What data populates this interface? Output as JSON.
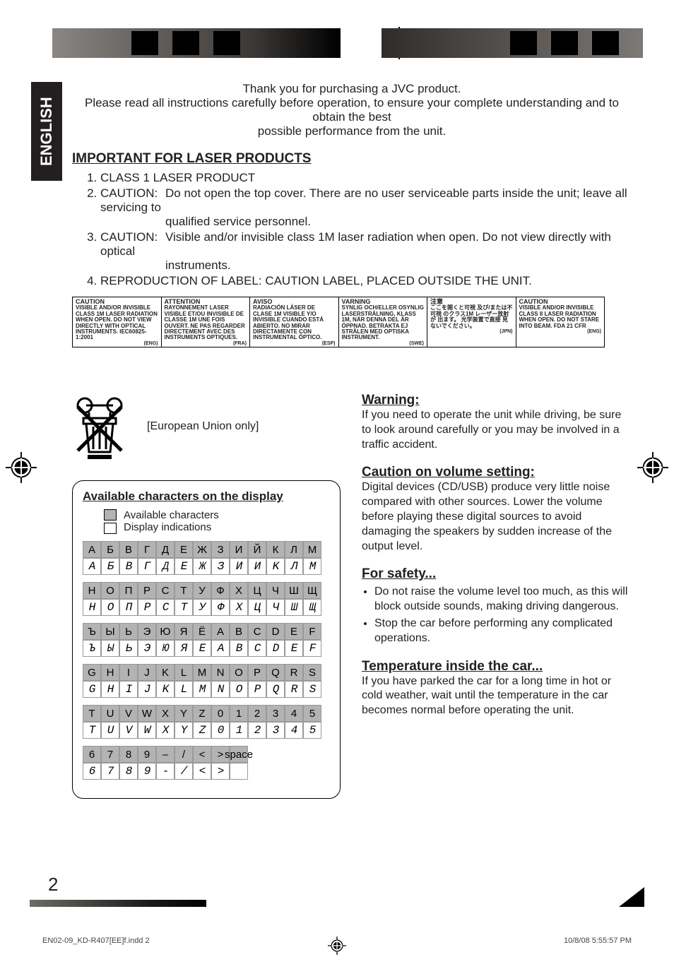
{
  "colors": {
    "text": "#231f20",
    "bg": "#ffffff",
    "tab_bg": "#231f20",
    "tab_fg": "#ffffff",
    "swatch_gray": "#b3b3b3",
    "grid_border": "#999999"
  },
  "lang_tab": "ENGLISH",
  "intro": {
    "l1": "Thank you for purchasing a JVC product.",
    "l2": "Please read all instructions carefully before operation, to ensure your complete understanding and to obtain the best",
    "l3": "possible performance from the unit."
  },
  "laser": {
    "heading": "IMPORTANT FOR LASER PRODUCTS",
    "items": [
      {
        "text": "CLASS 1 LASER PRODUCT"
      },
      {
        "term": "CAUTION:",
        "text": "Do not open the top cover. There are no user serviceable parts inside the unit; leave all servicing to",
        "text2": "qualified service personnel."
      },
      {
        "term": "CAUTION:",
        "text": "Visible and/or invisible class 1M laser radiation when open. Do not view directly with optical",
        "text2": "instruments."
      },
      {
        "text": "REPRODUCTION OF LABEL: CAUTION LABEL, PLACED OUTSIDE THE UNIT."
      }
    ]
  },
  "caution_strip": [
    {
      "hd": "CAUTION",
      "body": "VISIBLE AND/OR INVISIBLE CLASS 1M LASER RADIATION WHEN OPEN. DO NOT VIEW DIRECTLY WITH OPTICAL INSTRUMENTS. IEC60825-1:2001",
      "ft": "(ENG)"
    },
    {
      "hd": "ATTENTION",
      "body": "RAYONNEMENT LASER VISIBLE ET/OU INVISIBLE DE CLASSE 1M UNE FOIS OUVERT. NE PAS REGARDER DIRECTEMENT AVEC DES INSTRUMENTS OPTIQUES.",
      "ft": "(FRA)"
    },
    {
      "hd": "AVISO",
      "body": "RADIACIÓN LÁSER DE CLASE 1M VISIBLE Y/O INVISIBLE CUANDO ESTÁ ABIERTO. NO MIRAR DIRECTAMENTE CON INSTRUMENTAL ÓPTICO.",
      "ft": "(ESP)"
    },
    {
      "hd": "VARNING",
      "body": "SYNLIG OCH/ELLER OSYNLIG LASERSTRÅLNING, KLASS 1M, NÄR DENNA DEL ÄR ÖPPNAD. BETRAKTA EJ STRÅLEN MED OPTISKA INSTRUMENT.",
      "ft": "(SWE)"
    },
    {
      "hd": "注意",
      "body": "ここを開くと可視 及び/または不可視 のクラス1M レーザー放射が 出ます。 光学装置で直接 見ないでください。",
      "ft": "(JPN)"
    },
    {
      "hd": "CAUTION",
      "body": "VISIBLE AND/OR INVISIBLE CLASS II LASER RADIATION WHEN OPEN. DO NOT STARE INTO BEAM. FDA 21 CFR",
      "ft": "(ENG)"
    }
  ],
  "eu_only": "[European Union only]",
  "chars_panel": {
    "heading": "Available characters on the display",
    "legend_top": "Available characters",
    "legend_bot": "Display indications",
    "rows": [
      {
        "top": [
          "А",
          "Б",
          "В",
          "Г",
          "Д",
          "Е",
          "Ж",
          "З",
          "И",
          "Й",
          "К",
          "Л",
          "М"
        ],
        "bot": [
          "A",
          "Б",
          "B",
          "Г",
          "Д",
          "E",
          "Ж",
          "З",
          "И",
          "И",
          "K",
          "Л",
          "M"
        ]
      },
      {
        "top": [
          "Н",
          "О",
          "П",
          "Р",
          "С",
          "Т",
          "У",
          "Ф",
          "Х",
          "Ц",
          "Ч",
          "Ш",
          "Щ"
        ],
        "bot": [
          "H",
          "O",
          "П",
          "P",
          "C",
          "T",
          "У",
          "Ф",
          "X",
          "Ц",
          "Ч",
          "Ш",
          "Щ"
        ]
      },
      {
        "top": [
          "Ъ",
          "Ы",
          "Ь",
          "Э",
          "Ю",
          "Я",
          "Ё",
          "A",
          "B",
          "C",
          "D",
          "E",
          "F"
        ],
        "bot": [
          "Ъ",
          "Ы",
          "Ь",
          "Э",
          "Ю",
          "Я",
          "E",
          "A",
          "B",
          "C",
          "D",
          "E",
          "F"
        ]
      },
      {
        "top": [
          "G",
          "H",
          "I",
          "J",
          "K",
          "L",
          "M",
          "N",
          "O",
          "P",
          "Q",
          "R",
          "S"
        ],
        "bot": [
          "G",
          "H",
          "I",
          "J",
          "K",
          "L",
          "M",
          "N",
          "O",
          "P",
          "Q",
          "R",
          "S"
        ]
      },
      {
        "top": [
          "T",
          "U",
          "V",
          "W",
          "X",
          "Y",
          "Z",
          "0",
          "1",
          "2",
          "3",
          "4",
          "5"
        ],
        "bot": [
          "T",
          "U",
          "V",
          "W",
          "X",
          "Y",
          "Z",
          "0",
          "1",
          "2",
          "3",
          "4",
          "5"
        ]
      },
      {
        "top": [
          "6",
          "7",
          "8",
          "9",
          "–",
          "/",
          "<",
          ">",
          "space"
        ],
        "bot": [
          "6",
          "7",
          "8",
          "9",
          "-",
          "/",
          "<",
          ">",
          ""
        ]
      }
    ]
  },
  "warning": {
    "heading": "Warning:",
    "body": "If you need to operate the unit while driving, be sure to look around carefully or you may be involved in a traffic accident."
  },
  "volume": {
    "heading": "Caution on volume setting:",
    "body": "Digital devices (CD/USB) produce very little noise compared with other sources. Lower the volume before playing these digital sources to avoid damaging the speakers by sudden increase of the output level."
  },
  "safety": {
    "heading": "For safety...",
    "items": [
      "Do not raise the volume level too much, as this will block outside sounds, making driving dangerous.",
      "Stop the car before performing any complicated operations."
    ]
  },
  "temp": {
    "heading": "Temperature inside the car...",
    "body": "If you have parked the car for a long time in hot or cold weather, wait until the temperature in the car becomes normal before operating the unit."
  },
  "page_number": "2",
  "print_footer": {
    "left": "EN02-09_KD-R407[EE]f.indd   2",
    "right": "10/8/08   5:55:57 PM"
  }
}
